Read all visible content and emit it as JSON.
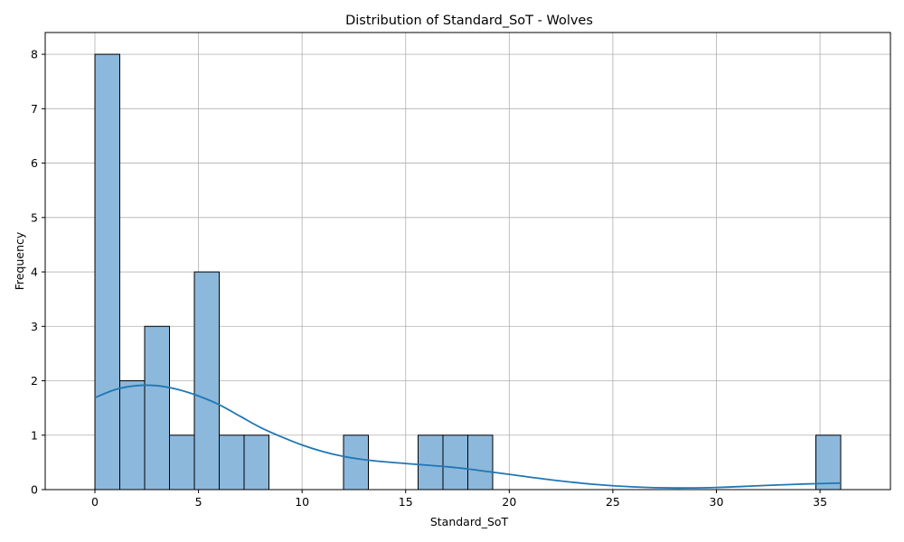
{
  "chart_data": {
    "type": "bar",
    "subtype": "histogram with kde",
    "title": "Distribution of Standard_SoT - Wolves",
    "xlabel": "Standard_SoT",
    "ylabel": "Frequency",
    "xlim": [
      -2.4,
      38.4
    ],
    "ylim": [
      0,
      8.4
    ],
    "xticks": [
      0,
      5,
      10,
      15,
      20,
      25,
      30,
      35
    ],
    "yticks": [
      0,
      1,
      2,
      3,
      4,
      5,
      6,
      7,
      8
    ],
    "grid": true,
    "bar_color": "#8cb8dc",
    "edge_color": "#000000",
    "kde_color": "#1f77b4",
    "bins": [
      {
        "x0": 0.0,
        "x1": 1.2,
        "count": 8
      },
      {
        "x0": 1.2,
        "x1": 2.4,
        "count": 2
      },
      {
        "x0": 2.4,
        "x1": 3.6,
        "count": 3
      },
      {
        "x0": 3.6,
        "x1": 4.8,
        "count": 1
      },
      {
        "x0": 4.8,
        "x1": 6.0,
        "count": 4
      },
      {
        "x0": 6.0,
        "x1": 7.2,
        "count": 1
      },
      {
        "x0": 7.2,
        "x1": 8.4,
        "count": 1
      },
      {
        "x0": 12.0,
        "x1": 13.2,
        "count": 1
      },
      {
        "x0": 15.6,
        "x1": 16.8,
        "count": 1
      },
      {
        "x0": 16.8,
        "x1": 18.0,
        "count": 1
      },
      {
        "x0": 18.0,
        "x1": 19.2,
        "count": 1
      },
      {
        "x0": 34.8,
        "x1": 36.0,
        "count": 1
      }
    ],
    "kde": {
      "x": [
        0,
        1,
        2,
        3,
        4,
        5,
        6,
        7,
        8,
        9,
        10,
        11,
        12,
        13,
        14,
        15,
        16,
        17,
        18,
        19,
        20,
        22,
        24,
        26,
        28,
        30,
        32,
        34,
        36
      ],
      "y": [
        1.69,
        1.84,
        1.91,
        1.91,
        1.84,
        1.72,
        1.56,
        1.35,
        1.14,
        0.97,
        0.82,
        0.7,
        0.61,
        0.55,
        0.51,
        0.48,
        0.45,
        0.42,
        0.38,
        0.33,
        0.28,
        0.18,
        0.1,
        0.05,
        0.03,
        0.04,
        0.07,
        0.1,
        0.12
      ]
    }
  }
}
